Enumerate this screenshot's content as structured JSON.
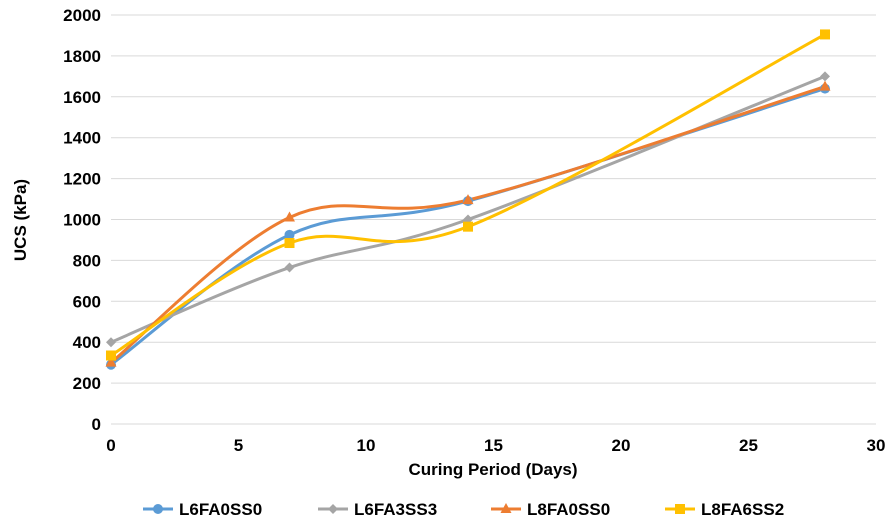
{
  "chart_data": {
    "type": "line",
    "title": "",
    "xlabel": "Curing Period (Days)",
    "ylabel": "UCS (kPa)",
    "xlim": [
      0,
      30
    ],
    "ylim": [
      0,
      2000
    ],
    "x_ticks": [
      "0",
      "5",
      "10",
      "15",
      "20",
      "25",
      "30"
    ],
    "y_ticks": [
      "0",
      "200",
      "400",
      "600",
      "800",
      "1000",
      "1200",
      "1400",
      "1600",
      "1800",
      "2000"
    ],
    "grid": "horizontal",
    "legend_position": "bottom",
    "smoothed": true,
    "x": [
      0,
      7,
      14,
      28
    ],
    "series": [
      {
        "name": "L6FA0SS0",
        "values": [
          290,
          925,
          1090,
          1640
        ],
        "color": "#5b9bd5",
        "marker": "circle"
      },
      {
        "name": "L6FA3SS3",
        "values": [
          400,
          765,
          1000,
          1700
        ],
        "color": "#a5a5a5",
        "marker": "diamond"
      },
      {
        "name": "L8FA0SS0",
        "values": [
          300,
          1010,
          1095,
          1650
        ],
        "color": "#ed7d31",
        "marker": "triangle"
      },
      {
        "name": "L8FA6SS2",
        "values": [
          335,
          885,
          965,
          1905
        ],
        "color": "#ffc000",
        "marker": "square"
      }
    ]
  }
}
